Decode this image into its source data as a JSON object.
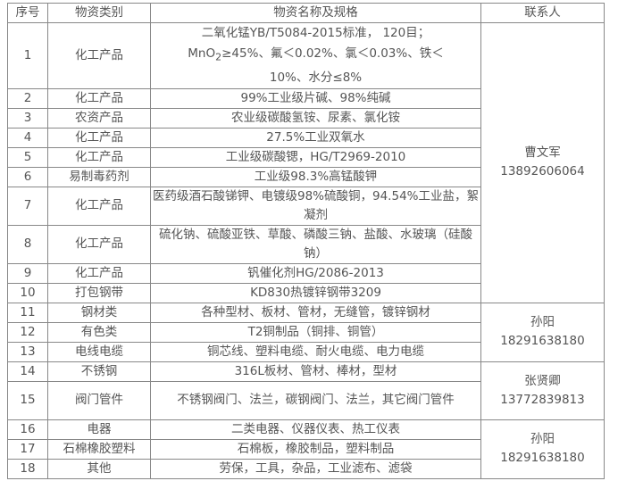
{
  "headers": {
    "no": "序号",
    "category": "物资类别",
    "spec": "物资名称及规格",
    "contact": "联系人"
  },
  "rows": [
    {
      "no": "1",
      "category": "化工产品",
      "spec_a": "二氧化锰YB/T5084-2015标准， 120目；",
      "spec_b": "MnO",
      "spec_sub": "2",
      "spec_c": "≥45%、氟＜0.02%、氯＜0.03%、铁＜",
      "spec_d": "10%、水分≤8%"
    },
    {
      "no": "2",
      "category": "化工产品",
      "spec": "99%工业级片碱、98%纯碱"
    },
    {
      "no": "3",
      "category": "农资产品",
      "spec": "农业级碳酸氢铵、尿素、氯化铵"
    },
    {
      "no": "4",
      "category": "化工产品",
      "spec": "27.5%工业双氧水"
    },
    {
      "no": "5",
      "category": "化工产品",
      "spec": "工业级碳酸锶，HG/T2969-2010"
    },
    {
      "no": "6",
      "category": "易制毒药剂",
      "spec": "工业级98.3%高锰酸钾"
    },
    {
      "no": "7",
      "category": "化工产品",
      "spec": "医药级酒石酸锑钾、电镀级98%硫酸铜，94.54%工业盐，絮凝剂"
    },
    {
      "no": "8",
      "category": "化工产品",
      "spec": "硫化钠、硫酸亚铁、草酸、磷酸三钠、盐酸、水玻璃（硅酸钠）"
    },
    {
      "no": "9",
      "category": "化工产品",
      "spec": "钒催化剂HG/2086-2013"
    },
    {
      "no": "10",
      "category": "打包钢带",
      "spec": "KD830热镀锌钢带3209"
    },
    {
      "no": "11",
      "category": "钢材类",
      "spec": "各种型材、板材、管材，无缝管，镀锌钢材"
    },
    {
      "no": "12",
      "category": "有色类",
      "spec": "T2铜制品（铜排、铜管）"
    },
    {
      "no": "13",
      "category": "电线电缆",
      "spec": "铜芯线、塑料电缆、耐火电缆、电力电缆"
    },
    {
      "no": "14",
      "category": "不锈钢",
      "spec": "316L板材、管材、棒材，型材"
    },
    {
      "no": "15",
      "category": "阀门管件",
      "spec": "不锈钢阀门、法兰，碳钢阀门、法兰，其它阀门管件"
    },
    {
      "no": "16",
      "category": "电器",
      "spec": "二类电器、仪器仪表、热工仪表"
    },
    {
      "no": "17",
      "category": "石棉橡胶塑料",
      "spec": "石棉板，橡胶制品，塑料制品"
    },
    {
      "no": "18",
      "category": "其他",
      "spec": "劳保，工具，杂品，工业滤布、滤袋"
    }
  ],
  "contacts": [
    {
      "name": "曹文军",
      "phone": "13892606064"
    },
    {
      "name": "孙阳",
      "phone": "18291638180"
    },
    {
      "name": "张贤卿",
      "phone": "13772839813"
    },
    {
      "name": "孙阳",
      "phone": "18291638180"
    }
  ]
}
